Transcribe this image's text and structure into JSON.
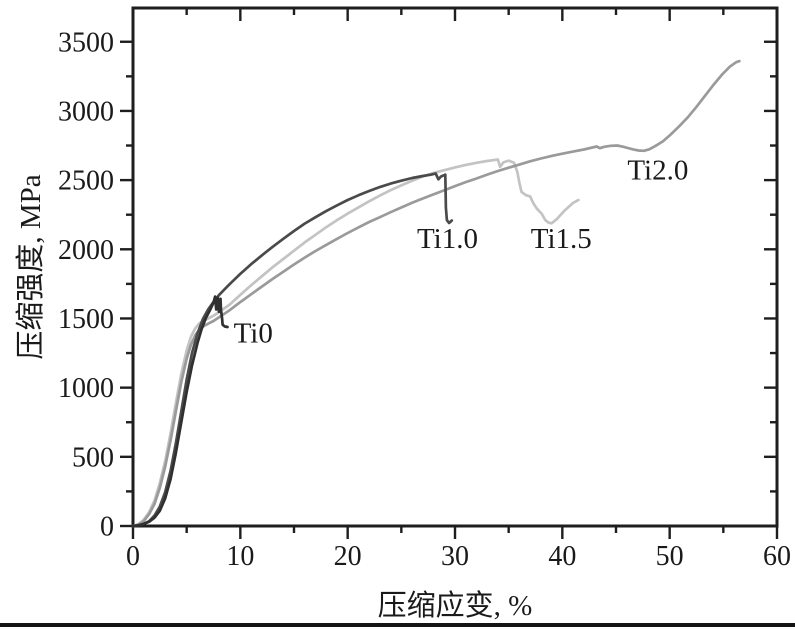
{
  "figure": {
    "background": "#ffffff",
    "frame_color": "#1e1e1e",
    "text_color": "#1a1a1a",
    "bottom_rule_color": "#141414"
  },
  "chart_data": {
    "type": "line",
    "title": "",
    "xlabel": "压缩应变, %",
    "ylabel": "压缩强度, MPa",
    "xlim": [
      0,
      60
    ],
    "ylim": [
      0,
      3744
    ],
    "grid": false,
    "legend_position": "none (inline curve labels)",
    "x_major_ticks": [
      0,
      10,
      20,
      30,
      40,
      50,
      60
    ],
    "x_minor_ticks": [
      5,
      15,
      25,
      35,
      45,
      55
    ],
    "y_major_ticks": [
      0,
      500,
      1000,
      1500,
      2000,
      2500,
      3000,
      3500
    ],
    "y_minor_ticks": [
      250,
      750,
      1250,
      1750,
      2250,
      2750,
      3250
    ],
    "series": [
      {
        "name": "Ti1.5",
        "color": "#c3c3c3",
        "points": [
          [
            0,
            0
          ],
          [
            0.5,
            12
          ],
          [
            1,
            45
          ],
          [
            1.5,
            100
          ],
          [
            2,
            185
          ],
          [
            2.5,
            310
          ],
          [
            3,
            470
          ],
          [
            3.5,
            670
          ],
          [
            4,
            890
          ],
          [
            4.5,
            1100
          ],
          [
            5,
            1270
          ],
          [
            5.4,
            1370
          ],
          [
            5.8,
            1430
          ],
          [
            6.2,
            1465
          ],
          [
            6.6,
            1485
          ],
          [
            7,
            1500
          ],
          [
            7.5,
            1520
          ],
          [
            8,
            1545
          ],
          [
            9,
            1600
          ],
          [
            10,
            1670
          ],
          [
            11,
            1740
          ],
          [
            12,
            1805
          ],
          [
            13,
            1870
          ],
          [
            14,
            1930
          ],
          [
            15,
            1990
          ],
          [
            16,
            2050
          ],
          [
            17,
            2105
          ],
          [
            18,
            2160
          ],
          [
            19,
            2210
          ],
          [
            20,
            2258
          ],
          [
            21,
            2303
          ],
          [
            22,
            2347
          ],
          [
            23,
            2388
          ],
          [
            24,
            2427
          ],
          [
            25,
            2462
          ],
          [
            26,
            2496
          ],
          [
            27,
            2526
          ],
          [
            28,
            2552
          ],
          [
            29,
            2572
          ],
          [
            30,
            2592
          ],
          [
            31,
            2610
          ],
          [
            32,
            2625
          ],
          [
            33,
            2638
          ],
          [
            33.7,
            2646
          ],
          [
            34.0,
            2649
          ],
          [
            34.2,
            2596
          ],
          [
            34.5,
            2628
          ],
          [
            35.0,
            2641
          ],
          [
            35.5,
            2626
          ],
          [
            35.8,
            2560
          ],
          [
            36.0,
            2480
          ],
          [
            36.2,
            2415
          ],
          [
            36.6,
            2392
          ],
          [
            37.0,
            2382
          ],
          [
            37.3,
            2332
          ],
          [
            37.6,
            2296
          ],
          [
            38.1,
            2255
          ],
          [
            38.4,
            2212
          ],
          [
            38.7,
            2193
          ],
          [
            39.0,
            2188
          ],
          [
            39.5,
            2220
          ],
          [
            40.2,
            2280
          ],
          [
            41.0,
            2335
          ],
          [
            41.5,
            2356
          ]
        ]
      },
      {
        "name": "Ti2.0",
        "color": "#9a9a9a",
        "points": [
          [
            0,
            0
          ],
          [
            0.5,
            10
          ],
          [
            1,
            35
          ],
          [
            1.5,
            85
          ],
          [
            2,
            160
          ],
          [
            2.5,
            275
          ],
          [
            3,
            430
          ],
          [
            3.5,
            620
          ],
          [
            4,
            830
          ],
          [
            4.5,
            1040
          ],
          [
            5,
            1210
          ],
          [
            5.4,
            1310
          ],
          [
            5.8,
            1380
          ],
          [
            6.2,
            1420
          ],
          [
            6.6,
            1445
          ],
          [
            7,
            1462
          ],
          [
            7.5,
            1482
          ],
          [
            8,
            1508
          ],
          [
            9,
            1560
          ],
          [
            10,
            1618
          ],
          [
            11,
            1675
          ],
          [
            12,
            1730
          ],
          [
            13,
            1785
          ],
          [
            14,
            1838
          ],
          [
            15,
            1890
          ],
          [
            16,
            1940
          ],
          [
            17,
            1988
          ],
          [
            18,
            2032
          ],
          [
            19,
            2075
          ],
          [
            20,
            2118
          ],
          [
            21,
            2158
          ],
          [
            22,
            2197
          ],
          [
            23,
            2232
          ],
          [
            24,
            2268
          ],
          [
            25,
            2302
          ],
          [
            26,
            2336
          ],
          [
            27,
            2367
          ],
          [
            28,
            2397
          ],
          [
            29,
            2427
          ],
          [
            30,
            2457
          ],
          [
            31,
            2486
          ],
          [
            32,
            2512
          ],
          [
            33,
            2540
          ],
          [
            34,
            2566
          ],
          [
            35,
            2590
          ],
          [
            36,
            2612
          ],
          [
            37,
            2636
          ],
          [
            38,
            2656
          ],
          [
            39,
            2675
          ],
          [
            40,
            2691
          ],
          [
            41,
            2706
          ],
          [
            42,
            2721
          ],
          [
            42.8,
            2736
          ],
          [
            43.2,
            2743
          ],
          [
            43.5,
            2731
          ],
          [
            43.9,
            2741
          ],
          [
            44.5,
            2748
          ],
          [
            45.1,
            2750
          ],
          [
            45.6,
            2742
          ],
          [
            46.1,
            2732
          ],
          [
            46.6,
            2722
          ],
          [
            47.1,
            2714
          ],
          [
            47.6,
            2712
          ],
          [
            48.1,
            2723
          ],
          [
            48.7,
            2748
          ],
          [
            49.4,
            2782
          ],
          [
            50.1,
            2830
          ],
          [
            50.9,
            2890
          ],
          [
            51.7,
            2955
          ],
          [
            52.5,
            3030
          ],
          [
            53.3,
            3110
          ],
          [
            54.1,
            3190
          ],
          [
            54.9,
            3265
          ],
          [
            55.6,
            3320
          ],
          [
            56.2,
            3352
          ],
          [
            56.5,
            3360
          ]
        ]
      },
      {
        "name": "Ti1.0",
        "color": "#4a4a4a",
        "points": [
          [
            0,
            0
          ],
          [
            0.5,
            5
          ],
          [
            1,
            15
          ],
          [
            1.5,
            35
          ],
          [
            2,
            75
          ],
          [
            2.5,
            140
          ],
          [
            3,
            245
          ],
          [
            3.5,
            400
          ],
          [
            4,
            600
          ],
          [
            4.5,
            830
          ],
          [
            5,
            1060
          ],
          [
            5.5,
            1250
          ],
          [
            6,
            1390
          ],
          [
            6.5,
            1495
          ],
          [
            7,
            1565
          ],
          [
            7.5,
            1620
          ],
          [
            8,
            1668
          ],
          [
            8.5,
            1708
          ],
          [
            9,
            1748
          ],
          [
            10,
            1822
          ],
          [
            11,
            1892
          ],
          [
            12,
            1956
          ],
          [
            13,
            2017
          ],
          [
            14,
            2076
          ],
          [
            15,
            2132
          ],
          [
            16,
            2186
          ],
          [
            17,
            2232
          ],
          [
            18,
            2276
          ],
          [
            19,
            2317
          ],
          [
            20,
            2356
          ],
          [
            21,
            2390
          ],
          [
            22,
            2421
          ],
          [
            23,
            2450
          ],
          [
            24,
            2475
          ],
          [
            25,
            2496
          ],
          [
            26,
            2515
          ],
          [
            27,
            2530
          ],
          [
            27.8,
            2540
          ],
          [
            28.2,
            2548
          ],
          [
            28.45,
            2506
          ],
          [
            28.7,
            2526
          ],
          [
            29.0,
            2536
          ],
          [
            29.1,
            2540
          ],
          [
            29.15,
            2300
          ],
          [
            29.25,
            2210
          ],
          [
            29.45,
            2190
          ],
          [
            29.7,
            2208
          ]
        ]
      },
      {
        "name": "Ti0",
        "color": "#303030",
        "points": [
          [
            0,
            0
          ],
          [
            0.5,
            5
          ],
          [
            1,
            15
          ],
          [
            1.5,
            30
          ],
          [
            2,
            60
          ],
          [
            2.5,
            110
          ],
          [
            3,
            200
          ],
          [
            3.5,
            340
          ],
          [
            4,
            530
          ],
          [
            4.5,
            750
          ],
          [
            5,
            970
          ],
          [
            5.5,
            1160
          ],
          [
            6,
            1320
          ],
          [
            6.4,
            1425
          ],
          [
            6.8,
            1505
          ],
          [
            7.2,
            1565
          ],
          [
            7.5,
            1615
          ],
          [
            7.65,
            1658
          ],
          [
            7.75,
            1565
          ],
          [
            7.9,
            1650
          ],
          [
            8.0,
            1548
          ],
          [
            8.15,
            1642
          ],
          [
            8.2,
            1560
          ],
          [
            8.3,
            1500
          ],
          [
            8.35,
            1455
          ],
          [
            8.55,
            1442
          ],
          [
            8.8,
            1438
          ]
        ]
      }
    ],
    "annotations": [
      {
        "text": "Ti0",
        "x": 11.2,
        "y": 1390
      },
      {
        "text": "Ti1.0",
        "x": 29.3,
        "y": 2075
      },
      {
        "text": "Ti1.5",
        "x": 39.9,
        "y": 2075
      },
      {
        "text": "Ti2.0",
        "x": 48.9,
        "y": 2570
      }
    ]
  }
}
